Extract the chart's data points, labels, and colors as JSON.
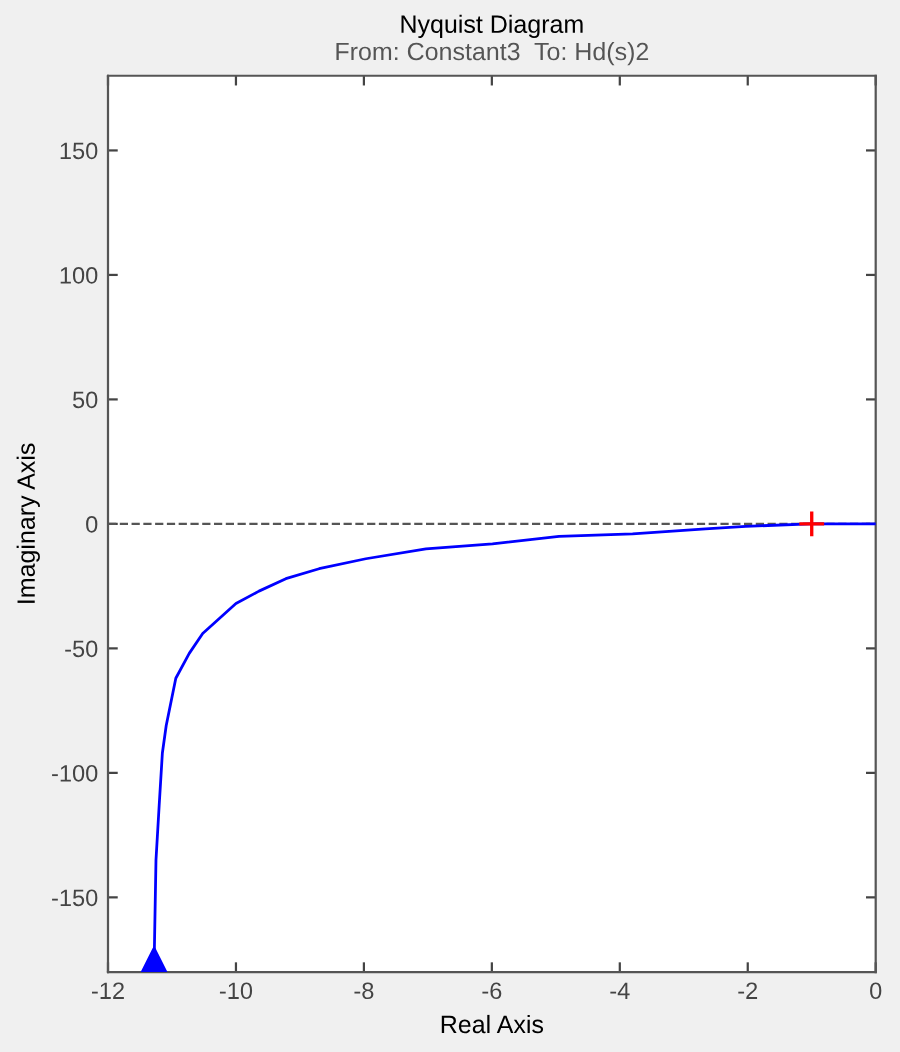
{
  "chart_data": {
    "type": "line",
    "title": "Nyquist Diagram",
    "subtitle": "From: Constant3  To: Hd(s)2",
    "xlabel": "Real Axis",
    "ylabel": "Imaginary Axis",
    "xlim": [
      -12,
      0
    ],
    "ylim": [
      -180,
      180
    ],
    "xticks": [
      -12,
      -10,
      -8,
      -6,
      -4,
      -2,
      0
    ],
    "yticks": [
      -150,
      -100,
      -50,
      0,
      50,
      100,
      150
    ],
    "grid": false,
    "legend": false,
    "ref_lines": [
      {
        "axis": "y",
        "value": 0,
        "color": "#555555",
        "line_style": "dashed"
      }
    ],
    "series": [
      {
        "color": "#0000ff",
        "marker": "none",
        "line_style": "solid",
        "x": [
          -11.28,
          -11.25,
          -11.2,
          -11.15,
          -11.09,
          -10.94,
          -10.73,
          -10.52,
          -10.26,
          -10.0,
          -9.64,
          -9.22,
          -8.7,
          -7.97,
          -7.03,
          -5.99,
          -4.95,
          -3.8,
          -2.66,
          -2.03,
          -1.02,
          0
        ],
        "values": [
          -178,
          -135,
          -113,
          -92,
          -81,
          -62,
          -52,
          -44,
          -38,
          -32,
          -27,
          -22,
          -18,
          -14,
          -10,
          -8,
          -5,
          -4,
          -2,
          -1,
          0,
          0
        ]
      },
      {
        "type": "scatter",
        "color": "#0000ff",
        "marker": "triangle",
        "x": [
          -11.28
        ],
        "values": [
          -176
        ]
      },
      {
        "type": "scatter",
        "color": "#ff0000",
        "marker": "cross",
        "x": [
          -1
        ],
        "values": [
          0
        ]
      }
    ]
  }
}
